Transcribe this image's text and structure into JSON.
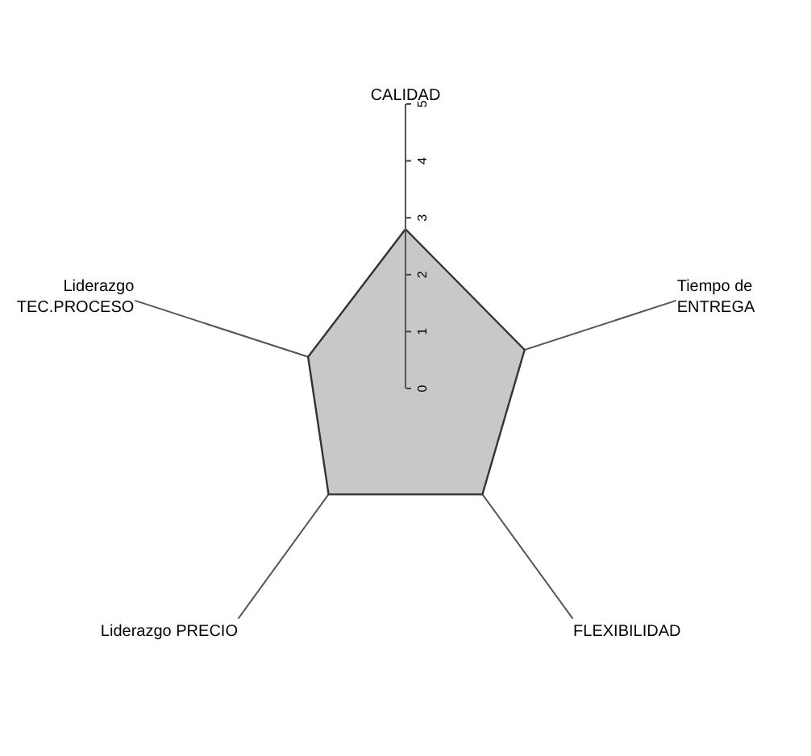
{
  "chart_data": {
    "type": "radar",
    "categories": [
      "CALIDAD",
      "Tiempo de\nENTREGA",
      "FLEXIBILIDAD",
      "Liderazgo PRECIO",
      "Liderazgo\nTEC.PROCESO"
    ],
    "series": [
      {
        "color": "#c8c8c8",
        "values": [
          2.8,
          2.2,
          2.3,
          2.3,
          1.8
        ]
      }
    ],
    "ylim": [
      0,
      5
    ],
    "yticks": [
      0,
      1,
      2,
      3,
      4,
      5
    ],
    "grid": true,
    "marker": "none"
  }
}
